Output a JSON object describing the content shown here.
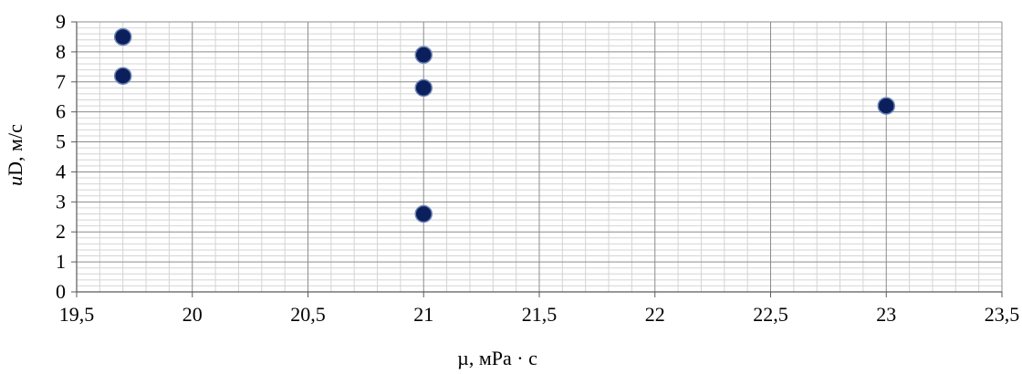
{
  "chart_data": {
    "type": "scatter",
    "title": "",
    "xlabel": "µ, мPa · c",
    "ylabel_italic": "u",
    "ylabel_rest": "D, м/с",
    "xlim": [
      19.5,
      23.5
    ],
    "ylim": [
      0,
      9
    ],
    "x_ticks": [
      19.5,
      20,
      20.5,
      21,
      21.5,
      22,
      22.5,
      23,
      23.5
    ],
    "x_tick_labels": [
      "19,5",
      "20",
      "20,5",
      "21",
      "21,5",
      "22",
      "22,5",
      "23",
      "23,5"
    ],
    "y_ticks": [
      0,
      1,
      2,
      3,
      4,
      5,
      6,
      7,
      8,
      9
    ],
    "y_tick_labels": [
      "0",
      "1",
      "2",
      "3",
      "4",
      "5",
      "6",
      "7",
      "8",
      "9"
    ],
    "grid": "major and minor",
    "legend": "none",
    "marker_color": "#0b1f5c",
    "series": [
      {
        "points": [
          {
            "x": 19.7,
            "y": 8.5
          },
          {
            "x": 19.7,
            "y": 7.2
          },
          {
            "x": 21.0,
            "y": 7.9
          },
          {
            "x": 21.0,
            "y": 6.8
          },
          {
            "x": 21.0,
            "y": 2.6
          },
          {
            "x": 23.0,
            "y": 6.2
          }
        ]
      }
    ]
  }
}
